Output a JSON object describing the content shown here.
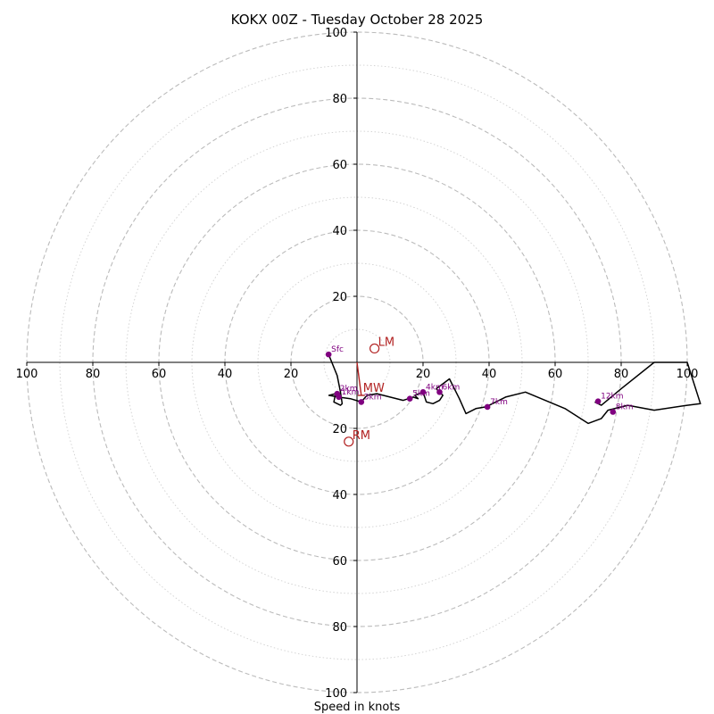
{
  "chart_data": {
    "type": "hodograph",
    "title": "KOKX 00Z - Tuesday October 28 2025",
    "xlabel": "Speed in knots",
    "range": 100,
    "ring_major_step": 20,
    "ring_minor_step": 10,
    "x_ticks": [
      "100",
      "80",
      "60",
      "40",
      "20",
      "20",
      "40",
      "60",
      "80",
      "100"
    ],
    "y_ticks": [
      "100",
      "80",
      "60",
      "40",
      "20",
      "20",
      "40",
      "60",
      "80",
      "100"
    ],
    "colors": {
      "trace": "#000000",
      "height_marker": "#800080",
      "motion": "#b22222",
      "grid": "#bbbbbb"
    },
    "trace": [
      [
        -8.6,
        2.4
      ],
      [
        -6,
        -4
      ],
      [
        -5,
        -9
      ],
      [
        -4.5,
        -12.5
      ],
      [
        -5,
        -13
      ],
      [
        -7,
        -12
      ],
      [
        -6.5,
        -9.5
      ],
      [
        -8.5,
        -10
      ],
      [
        -5.5,
        -10.5
      ],
      [
        -2,
        -11
      ],
      [
        1.3,
        -12
      ],
      [
        3,
        -10
      ],
      [
        6,
        -9.5
      ],
      [
        10,
        -10.5
      ],
      [
        14,
        -11.5
      ],
      [
        17,
        -10.5
      ],
      [
        18.5,
        -11
      ],
      [
        17.5,
        -10
      ],
      [
        20,
        -9
      ],
      [
        21,
        -12
      ],
      [
        23,
        -12.5
      ],
      [
        25,
        -11.5
      ],
      [
        26,
        -10
      ],
      [
        24,
        -8
      ],
      [
        28,
        -5
      ],
      [
        31,
        -11
      ],
      [
        33,
        -15.5
      ],
      [
        36,
        -14
      ],
      [
        39,
        -13.5
      ],
      [
        41,
        -12.5
      ],
      [
        45,
        -10.5
      ],
      [
        51,
        -9
      ],
      [
        63,
        -14
      ],
      [
        70,
        -18.5
      ],
      [
        74,
        -17
      ],
      [
        76,
        -14.5
      ],
      [
        82,
        -13
      ],
      [
        90,
        -14.5
      ],
      [
        100,
        -13
      ],
      [
        104,
        -12.5
      ],
      [
        100,
        0
      ],
      [
        90,
        0
      ],
      [
        80,
        -8
      ],
      [
        74,
        -13
      ],
      [
        72,
        -12
      ]
    ],
    "height_markers": [
      {
        "label": "Sfc",
        "u": -8.6,
        "v": 2.4
      },
      {
        "label": "1km",
        "u": -5.5,
        "v": -10.5
      },
      {
        "label": "2km",
        "u": -6.0,
        "v": -9.5
      },
      {
        "label": "3km",
        "u": 1.3,
        "v": -12.0
      },
      {
        "label": "4km",
        "u": 20.0,
        "v": -9.0
      },
      {
        "label": "5km",
        "u": 16.0,
        "v": -11.0
      },
      {
        "label": "6km",
        "u": 25.0,
        "v": -9.0
      },
      {
        "label": "7km",
        "u": 39.5,
        "v": -13.5
      },
      {
        "label": "8km",
        "u": 77.5,
        "v": -15.0
      },
      {
        "label": "12km",
        "u": 73.0,
        "v": -11.8
      }
    ],
    "storm_motion": [
      {
        "label": "LM",
        "u": 5.3,
        "v": 4.2
      },
      {
        "label": "RM",
        "u": -2.5,
        "v": -24.0
      }
    ],
    "mean_wind": {
      "label": "MW",
      "u": 1.3,
      "v": -10.0
    }
  }
}
